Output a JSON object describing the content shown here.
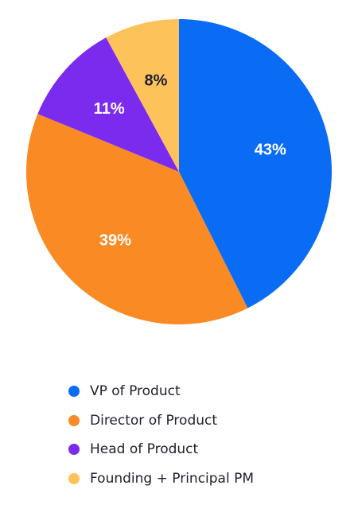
{
  "chart_data": {
    "type": "pie",
    "categories": [
      "VP of Product",
      "Director of Product",
      "Head of Product",
      "Founding + Principal PM"
    ],
    "values": [
      43,
      39,
      11,
      8
    ],
    "data_labels": [
      "43%",
      "39%",
      "11%",
      "8%"
    ],
    "colors": [
      "#0a6cf5",
      "#f98a24",
      "#7b2bee",
      "#fdc25a"
    ],
    "label_colors": [
      "#ffffff",
      "#ffffff",
      "#ffffff",
      "#1f1f2e"
    ],
    "legend_position": "bottom"
  },
  "legend": {
    "items": [
      {
        "label": "VP of Product",
        "color": "#0a6cf5"
      },
      {
        "label": "Director of Product",
        "color": "#f98a24"
      },
      {
        "label": "Head of Product",
        "color": "#7b2bee"
      },
      {
        "label": "Founding + Principal PM",
        "color": "#fdc25a"
      }
    ]
  }
}
